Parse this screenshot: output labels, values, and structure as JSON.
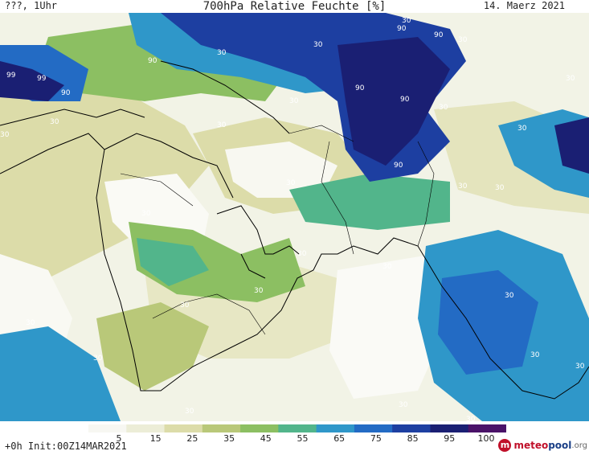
{
  "header": {
    "time_label": "???, 1Uhr",
    "title": "700hPa Relative Feuchte [%]",
    "date": "14. Maerz 2021"
  },
  "legend": {
    "ticks": [
      "5",
      "15",
      "25",
      "35",
      "45",
      "55",
      "65",
      "75",
      "85",
      "95",
      "100"
    ],
    "colors": [
      "#f7f7f2",
      "#ecedd7",
      "#dcdca9",
      "#b9c879",
      "#8cbf62",
      "#52b58b",
      "#2f97c9",
      "#236bc4",
      "#1d3fa1",
      "#1a1f73",
      "#4a1268"
    ]
  },
  "isoline_labels": [
    "30",
    "90",
    "99"
  ],
  "footer": {
    "run_info": "+0h Init:00Z14MAR2021",
    "logo": {
      "part1": "meteo",
      "part2": "pool",
      "part3": ".org"
    }
  },
  "colors": {
    "very_dry": "#f7f7f2",
    "dry": "#ecedd7",
    "olive": "#dcdca9",
    "green_light": "#b9c879",
    "green": "#8cbf62",
    "teal": "#52b58b",
    "blue_light": "#2f97c9",
    "blue": "#236bc4",
    "blue_dark": "#1d3fa1",
    "navy": "#1a1f73"
  }
}
